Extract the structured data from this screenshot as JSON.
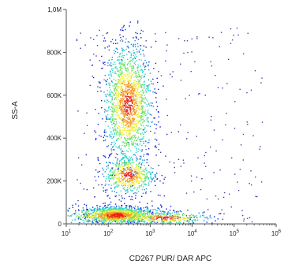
{
  "chart_data": {
    "type": "scatter",
    "title": "",
    "xlabel": "CD267 PUR/ DAR APC",
    "ylabel": "SS-A",
    "x_scale": "log",
    "xlim": [
      10,
      1000000
    ],
    "ylim": [
      0,
      1000000
    ],
    "x_ticks": [
      {
        "value": 10,
        "base": "10",
        "exp": "1"
      },
      {
        "value": 100,
        "base": "10",
        "exp": "2"
      },
      {
        "value": 1000,
        "base": "10",
        "exp": "3"
      },
      {
        "value": 10000,
        "base": "10",
        "exp": "4"
      },
      {
        "value": 100000,
        "base": "10",
        "exp": "5"
      },
      {
        "value": 1000000,
        "base": "10",
        "exp": "6"
      }
    ],
    "y_ticks": [
      {
        "value": 0,
        "label": "0"
      },
      {
        "value": 200000,
        "label": "200K"
      },
      {
        "value": 400000,
        "label": "400K"
      },
      {
        "value": 600000,
        "label": "600K"
      },
      {
        "value": 800000,
        "label": "800K"
      },
      {
        "value": 1000000,
        "label": "1,0M"
      }
    ],
    "grid": false,
    "legend": "none",
    "series": [
      {
        "type": "density-clusters",
        "clusters": [
          {
            "x_center": 160,
            "y_center": 45000,
            "x_spread_log": 0.35,
            "y_spread": 18000,
            "count": 900
          },
          {
            "x_center": 150,
            "y_center": 40000,
            "x_spread_log": 0.65,
            "y_spread": 22000,
            "count": 700
          },
          {
            "x_center": 300,
            "y_center": 230000,
            "x_spread_log": 0.3,
            "y_spread": 45000,
            "count": 550
          },
          {
            "x_center": 290,
            "y_center": 560000,
            "x_spread_log": 0.28,
            "y_spread": 140000,
            "count": 1600
          },
          {
            "x_center": 2000,
            "y_center": 30000,
            "x_spread_log": 0.55,
            "y_spread": 15000,
            "count": 350
          }
        ]
      }
    ],
    "colors": {
      "colormap": [
        "#0c1fd8",
        "#1c8be0",
        "#2bd4d0",
        "#6ee26a",
        "#ecec3a",
        "#f39a23",
        "#e8221a"
      ],
      "axis": "#555555",
      "outlier": "#4a3aa8"
    }
  }
}
